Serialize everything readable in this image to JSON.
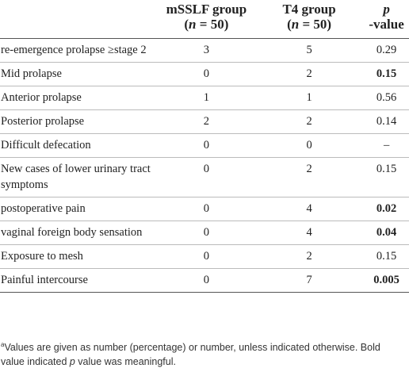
{
  "header": {
    "columns": [
      {
        "line1": "mSSLF group",
        "prefix": "(",
        "var": "n",
        "suffix": " = 50)"
      },
      {
        "line1": "T4 group",
        "prefix": "(",
        "var": "n",
        "suffix": " = 50)"
      },
      {
        "line1": "",
        "prefix": "",
        "var": "p",
        "suffix": "-value"
      }
    ]
  },
  "table": {
    "rows": [
      {
        "label": "re-emergence prolapse ≥stage 2",
        "mSSLF": 3,
        "T4": 5,
        "p": 0.29,
        "bold": false
      },
      {
        "label": "Mid prolapse",
        "mSSLF": 0,
        "T4": 2,
        "p": 0.15,
        "bold": true
      },
      {
        "label": "Anterior prolapse",
        "mSSLF": 1,
        "T4": 1,
        "p": 0.56,
        "bold": false
      },
      {
        "label": "Posterior prolapse",
        "mSSLF": 2,
        "T4": 2,
        "p": 0.14,
        "bold": false
      },
      {
        "label": "Difficult defecation",
        "mSSLF": 0,
        "T4": 0,
        "p": "–",
        "bold": false
      },
      {
        "label": "New cases of lower urinary tract symptoms",
        "mSSLF": 0,
        "T4": 2,
        "p": 0.15,
        "bold": false
      },
      {
        "label": "postoperative pain",
        "mSSLF": 0,
        "T4": 4,
        "p": 0.02,
        "bold": true
      },
      {
        "label": "vaginal foreign body sensation",
        "mSSLF": 0,
        "T4": 4,
        "p": 0.04,
        "bold": true
      },
      {
        "label": "Exposure to mesh",
        "mSSLF": 0,
        "T4": 2,
        "p": 0.15,
        "bold": false
      },
      {
        "label": "Painful intercourse",
        "mSSLF": 0,
        "T4": 7,
        "p": 0.005,
        "bold": true
      }
    ]
  },
  "footnote": {
    "mark": "a",
    "text1": "Values are given as number (percentage) or number, unless indicated otherwise. Bold value indicated ",
    "var": "p",
    "text2": " value was meaningful."
  }
}
